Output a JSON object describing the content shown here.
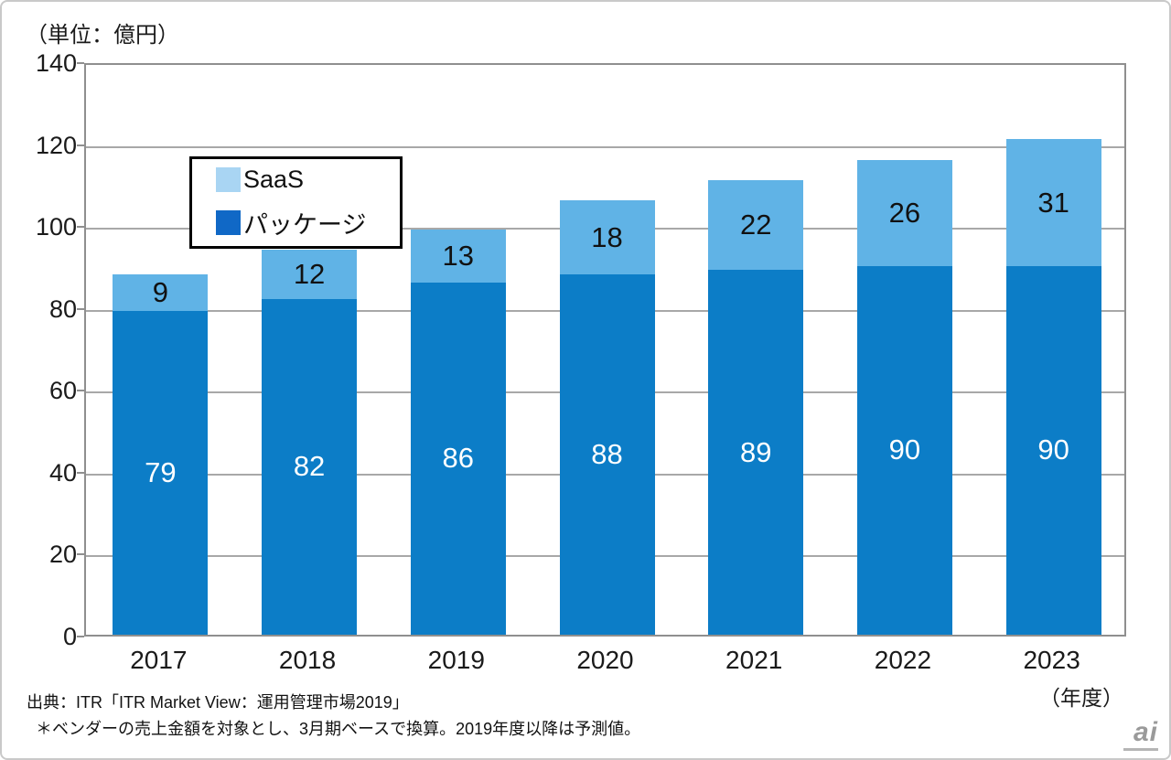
{
  "unit_label": "（単位：億円）",
  "x_axis_unit": "（年度）",
  "chart_data": {
    "type": "bar",
    "stacked": true,
    "title": "",
    "xlabel": "（年度）",
    "ylabel": "（単位：億円）",
    "categories": [
      "2017",
      "2018",
      "2019",
      "2020",
      "2021",
      "2022",
      "2023"
    ],
    "series": [
      {
        "name": "SaaS",
        "values": [
          9,
          12,
          13,
          18,
          22,
          26,
          31
        ],
        "bar_color": "#60b3e6",
        "legend_color": "#a9d5f3",
        "label_color": "#111111"
      },
      {
        "name": "パッケージ",
        "values": [
          79,
          82,
          86,
          88,
          89,
          90,
          90
        ],
        "bar_color": "#0c7dc7",
        "legend_color": "#1068c6",
        "label_color": "#ffffff"
      }
    ],
    "ylim": [
      0,
      140
    ],
    "y_ticks": [
      140,
      120,
      100,
      80,
      60,
      40,
      20,
      0
    ],
    "grid": true,
    "legend_position": "top-left-inside"
  },
  "footer": {
    "source": "出典：ITR「ITR Market View：運用管理市場2019」",
    "note": "＊ベンダーの売上金額を対象とし、3月期ベースで換算。2019年度以降は予測値。"
  },
  "watermark": {
    "text": "ai"
  },
  "colors": {
    "gridline": "#a8a8a8",
    "plot_border": "#8f8f8f",
    "outer_border": "#c9c9c9",
    "axis_text": "#1a1a1a"
  }
}
